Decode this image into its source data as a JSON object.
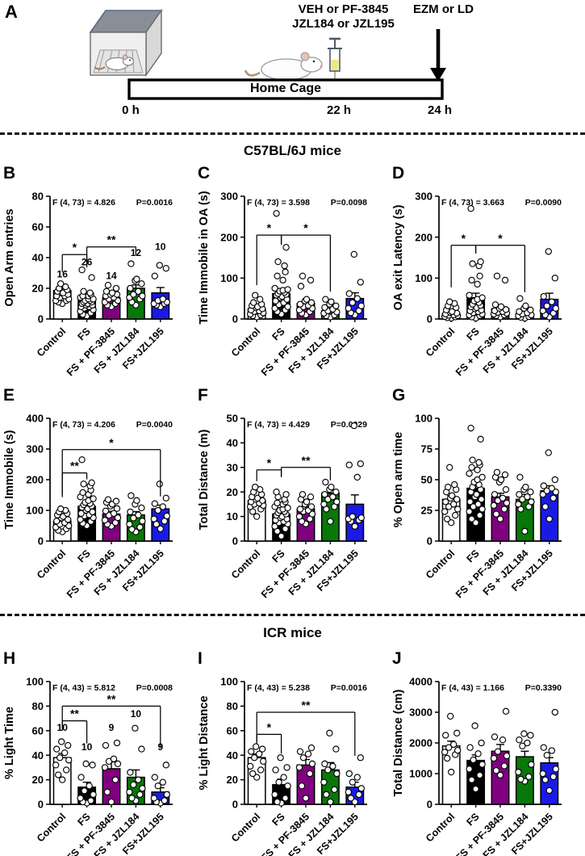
{
  "panel_a": {
    "letter": "A",
    "treatment_line1": "VEH or PF-3845",
    "treatment_line2": "JZL184 or JZL195",
    "test_label": "EZM or LD",
    "timeline_label": "Home Cage",
    "time_start": "0 h",
    "time_injection": "22 h",
    "time_test": "24 h"
  },
  "sections": {
    "c57": "C57BL/6J mice",
    "icr": "ICR mice"
  },
  "categories": [
    "Control",
    "FS",
    "FS + PF-3845",
    "FS + JZL184",
    "FS+JZL195"
  ],
  "bar_colors": [
    "#FFFFFF",
    "#000000",
    "#800080",
    "#087808",
    "#1A1AE6"
  ],
  "chart_data": [
    {
      "letter": "B",
      "type": "bar",
      "ylabel": "Open Arm entries",
      "ylim": 80,
      "yticks": [
        0,
        20,
        40,
        60,
        80
      ],
      "stats_f": "F (4, 73) = 4.826",
      "stats_p": "P=0.0016",
      "values": [
        18.5,
        12,
        14,
        20,
        17
      ],
      "sem": [
        1.3,
        1.2,
        1.2,
        2.2,
        3.5
      ],
      "n_labels": [
        "16",
        "26",
        "14",
        "12",
        "10"
      ],
      "n_y": [
        27,
        35,
        26,
        41,
        45
      ],
      "points": [
        [
          10,
          11,
          12,
          12,
          13,
          14,
          15,
          15,
          16,
          17,
          17,
          18,
          19,
          20,
          21,
          23
        ],
        [
          2,
          3,
          4,
          5,
          6,
          7,
          8,
          8,
          9,
          9,
          10,
          10,
          11,
          11,
          12,
          12,
          13,
          13,
          14,
          15,
          15,
          16,
          17,
          18,
          27,
          32
        ],
        [
          8,
          9,
          10,
          11,
          12,
          13,
          14,
          15,
          16,
          16,
          17,
          18,
          20,
          22
        ],
        [
          9,
          11,
          13,
          14,
          15,
          16,
          18,
          20,
          23,
          25,
          26,
          36
        ],
        [
          8,
          9,
          10,
          10,
          11,
          12,
          13,
          28,
          33,
          35
        ]
      ],
      "sig": [
        {
          "a": 0,
          "b": 1,
          "y": 42,
          "label": "*",
          "dropA": 22,
          "dropB": 16
        },
        {
          "a": 1,
          "b": 3,
          "y": 47,
          "label": "**",
          "dropA": 20,
          "dropB": 10
        }
      ]
    },
    {
      "letter": "C",
      "type": "bar",
      "ylabel": "Time Immobile in OA (s)",
      "ylim": 300,
      "yticks": [
        0,
        100,
        200,
        300
      ],
      "stats_f": "F (4, 73) = 3.598",
      "stats_p": "P=0.0098",
      "values": [
        25,
        62,
        38,
        20,
        50
      ],
      "sem": [
        4,
        9,
        8,
        4,
        14
      ],
      "n_labels": null,
      "n_y": null,
      "points": [
        [
          5,
          8,
          10,
          12,
          15,
          18,
          20,
          22,
          25,
          28,
          30,
          33,
          36,
          40,
          48,
          58
        ],
        [
          12,
          18,
          22,
          26,
          30,
          35,
          40,
          44,
          48,
          52,
          55,
          58,
          60,
          62,
          65,
          68,
          70,
          72,
          75,
          95,
          105,
          115,
          130,
          140,
          175,
          258
        ],
        [
          10,
          14,
          18,
          22,
          26,
          30,
          33,
          36,
          40,
          44,
          48,
          80,
          95,
          105
        ],
        [
          5,
          8,
          10,
          14,
          17,
          20,
          24,
          28,
          32,
          36,
          42,
          48
        ],
        [
          10,
          15,
          20,
          26,
          32,
          40,
          50,
          62,
          90,
          158
        ]
      ],
      "sig": [
        {
          "a": 0,
          "b": 1,
          "y": 205,
          "label": "*",
          "dropA": 62,
          "dropB": 12
        },
        {
          "a": 1,
          "b": 3,
          "y": 205,
          "label": "*",
          "dropA": 12,
          "dropB": 70
        }
      ]
    },
    {
      "letter": "D",
      "type": "bar",
      "ylabel": "OA exit Latency (s)",
      "ylim": 300,
      "yticks": [
        0,
        100,
        200,
        300
      ],
      "stats_f": "F (4, 73) = 3.663",
      "stats_p": "P=0.0090",
      "values": [
        13,
        52,
        25,
        13,
        48
      ],
      "sem": [
        3,
        11,
        7,
        4,
        15
      ],
      "n_labels": null,
      "n_y": null,
      "points": [
        [
          2,
          3,
          5,
          6,
          8,
          9,
          10,
          12,
          14,
          16,
          18,
          22,
          28,
          32,
          38,
          42
        ],
        [
          2,
          5,
          8,
          10,
          12,
          15,
          18,
          20,
          22,
          25,
          28,
          30,
          33,
          36,
          40,
          44,
          48,
          52,
          58,
          85,
          95,
          105,
          130,
          135,
          140,
          270
        ],
        [
          5,
          8,
          10,
          12,
          14,
          16,
          18,
          20,
          23,
          26,
          30,
          35,
          95,
          105
        ],
        [
          2,
          4,
          6,
          8,
          10,
          12,
          15,
          18,
          22,
          26,
          32,
          50
        ],
        [
          5,
          10,
          14,
          20,
          26,
          32,
          42,
          55,
          100,
          165
        ]
      ],
      "sig": [
        {
          "a": 0,
          "b": 1,
          "y": 180,
          "label": "*",
          "dropA": 52,
          "dropB": 10
        },
        {
          "a": 1,
          "b": 3,
          "y": 180,
          "label": "*",
          "dropA": 10,
          "dropB": 58
        }
      ]
    },
    {
      "letter": "E",
      "type": "bar",
      "ylabel": "Time Immobile (s)",
      "ylim": 400,
      "yticks": [
        0,
        100,
        200,
        300,
        400
      ],
      "stats_f": "F (4, 73) = 4.206",
      "stats_p": "P=0.0040",
      "values": [
        65,
        113,
        88,
        85,
        105
      ],
      "sem": [
        7,
        10,
        9,
        11,
        12
      ],
      "n_labels": null,
      "n_y": null,
      "points": [
        [
          30,
          35,
          40,
          45,
          50,
          55,
          60,
          65,
          70,
          75,
          80,
          85,
          90,
          95,
          100,
          105
        ],
        [
          50,
          58,
          64,
          70,
          76,
          82,
          86,
          90,
          95,
          100,
          105,
          110,
          114,
          118,
          122,
          126,
          132,
          138,
          144,
          152,
          158,
          166,
          180,
          186,
          190,
          265
        ],
        [
          48,
          55,
          60,
          68,
          76,
          84,
          90,
          98,
          106,
          114,
          120,
          126,
          130,
          135
        ],
        [
          30,
          38,
          45,
          55,
          65,
          75,
          85,
          95,
          108,
          120,
          132,
          148
        ],
        [
          40,
          55,
          65,
          72,
          82,
          100,
          112,
          122,
          140,
          186
        ]
      ],
      "sig": [
        {
          "a": 0,
          "b": 1,
          "y": 222,
          "label": "**",
          "dropA": 30,
          "dropB": 8
        },
        {
          "a": 0,
          "b": 4,
          "y": 298,
          "label": "*",
          "dropA": 56,
          "dropB": 58
        }
      ]
    },
    {
      "letter": "F",
      "type": "bar",
      "ylabel": "Total Distance (m)",
      "ylim": 50,
      "yticks": [
        0,
        10,
        20,
        30,
        40,
        50
      ],
      "stats_f": "F (4, 73) = 4.429",
      "stats_p": "P=0.0029",
      "values": [
        16.5,
        11,
        13,
        19.5,
        15
      ],
      "sem": [
        0.8,
        0.9,
        1.1,
        1.4,
        3.8
      ],
      "n_labels": null,
      "n_y": null,
      "points": [
        [
          10,
          12,
          13,
          14,
          14.5,
          15,
          15.5,
          16,
          16.5,
          17,
          17.5,
          18,
          19,
          20,
          21,
          22
        ],
        [
          2,
          4,
          5,
          6,
          7,
          7.5,
          8,
          8.5,
          9,
          9.5,
          10,
          10.5,
          11,
          11.5,
          12,
          12.5,
          13,
          13.5,
          14,
          15,
          15.5,
          16,
          17,
          18,
          19,
          20
        ],
        [
          7,
          8,
          9,
          10,
          11,
          12,
          12.5,
          13,
          14,
          15,
          16,
          17,
          18,
          19
        ],
        [
          8,
          13,
          14,
          15,
          16,
          17,
          18,
          19,
          20,
          21,
          22,
          24
        ],
        [
          6,
          8,
          8.5,
          9,
          9.5,
          10,
          26,
          31,
          31.5,
          47
        ]
      ],
      "sig": [
        {
          "a": 0,
          "b": 1,
          "y": 29,
          "label": "*",
          "dropA": 14,
          "dropB": 9
        },
        {
          "a": 1,
          "b": 3,
          "y": 30,
          "label": "**",
          "dropA": 11,
          "dropB": 16
        }
      ]
    },
    {
      "letter": "G",
      "type": "bar",
      "ylabel": "% Open arm time",
      "ylim": 100,
      "yticks": [
        0,
        25,
        50,
        75,
        100
      ],
      "stats_f": null,
      "stats_p": null,
      "values": [
        34,
        43,
        36,
        34,
        41
      ],
      "sem": [
        3,
        4,
        3,
        4,
        4
      ],
      "n_labels": null,
      "n_y": null,
      "points": [
        [
          15,
          18,
          21,
          24,
          26,
          28,
          30,
          32,
          34,
          35,
          37,
          40,
          42,
          44,
          46,
          60
        ],
        [
          15,
          18,
          21,
          24,
          26,
          28,
          30,
          32,
          34,
          36,
          38,
          40,
          42,
          44,
          46,
          48,
          50,
          52,
          55,
          58,
          60,
          62,
          64,
          66,
          83,
          92
        ],
        [
          18,
          22,
          26,
          29,
          31,
          33,
          35,
          38,
          42,
          48,
          50,
          52,
          54,
          56
        ],
        [
          8,
          26,
          28,
          30,
          32,
          34,
          36,
          38,
          40,
          42,
          44,
          52
        ],
        [
          18,
          28,
          35,
          38,
          40,
          41,
          43,
          45,
          50,
          72
        ]
      ],
      "sig": []
    },
    {
      "letter": "H",
      "type": "bar",
      "ylabel": "% Light Time",
      "ylim": 100,
      "yticks": [
        0,
        20,
        40,
        60,
        80,
        100
      ],
      "stats_f": "F (4, 43) = 5.812",
      "stats_p": "P=0.0008",
      "values": [
        38,
        14,
        29,
        22,
        10
      ],
      "sem": [
        3.5,
        4,
        5.5,
        6,
        3.5
      ],
      "n_labels": [
        "10",
        "10",
        "9",
        "10",
        "9"
      ],
      "n_y": [
        60,
        44,
        60,
        71,
        44
      ],
      "points": [
        [
          20,
          24,
          28,
          32,
          36,
          38,
          42,
          45,
          48,
          51
        ],
        [
          1,
          2,
          3,
          5,
          8,
          11,
          15,
          22,
          32,
          33
        ],
        [
          2,
          10,
          20,
          30,
          33,
          35,
          37,
          48,
          50
        ],
        [
          3,
          5,
          8,
          10,
          13,
          16,
          20,
          26,
          45,
          62
        ],
        [
          1,
          2,
          3,
          5,
          8,
          15,
          18,
          22,
          32
        ]
      ],
      "sig": [
        {
          "a": 0,
          "b": 1,
          "y": 68,
          "label": "**",
          "dropA": 12,
          "dropB": 28
        },
        {
          "a": 0,
          "b": 4,
          "y": 80,
          "label": "**",
          "dropA": 28,
          "dropB": 52
        }
      ]
    },
    {
      "letter": "I",
      "type": "bar",
      "ylabel": "% Light Distance",
      "ylim": 100,
      "yticks": [
        0,
        20,
        40,
        60,
        80,
        100
      ],
      "stats_f": "F (4, 43) = 5.238",
      "stats_p": "P=0.0016",
      "values": [
        38,
        16,
        32,
        28,
        14
      ],
      "sem": [
        3,
        4.5,
        4.5,
        6,
        4
      ],
      "n_labels": null,
      "n_y": null,
      "points": [
        [
          22,
          25,
          28,
          31,
          35,
          38,
          41,
          43,
          45,
          47
        ],
        [
          1,
          2,
          5,
          8,
          15,
          18,
          22,
          28,
          30,
          38
        ],
        [
          5,
          15,
          25,
          30,
          33,
          38,
          41,
          43,
          46
        ],
        [
          2,
          8,
          12,
          18,
          25,
          28,
          31,
          33,
          45,
          58
        ],
        [
          2,
          5,
          8,
          10,
          13,
          18,
          22,
          25,
          38
        ]
      ],
      "sig": [
        {
          "a": 0,
          "b": 1,
          "y": 57,
          "label": "*",
          "dropA": 12,
          "dropB": 24
        },
        {
          "a": 0,
          "b": 4,
          "y": 75,
          "label": "**",
          "dropA": 36,
          "dropB": 54
        }
      ]
    },
    {
      "letter": "J",
      "type": "bar",
      "ylabel": "Total Distance (cm)",
      "ylim": 4000,
      "yticks": [
        0,
        1000,
        2000,
        3000,
        4000
      ],
      "stats_f": "F (4, 43) = 1.166",
      "stats_p": "P=0.3390",
      "values": [
        1900,
        1430,
        1730,
        1550,
        1350
      ],
      "sem": [
        160,
        180,
        220,
        180,
        170
      ],
      "n_labels": null,
      "n_y": null,
      "points": [
        [
          1050,
          1500,
          1620,
          1700,
          1760,
          1850,
          1950,
          2250,
          2320,
          2870
        ],
        [
          500,
          800,
          950,
          1150,
          1300,
          1450,
          1650,
          1850,
          2000,
          2560
        ],
        [
          950,
          1100,
          1250,
          1500,
          1580,
          1720,
          2100,
          2200,
          3030
        ],
        [
          750,
          820,
          900,
          1050,
          1300,
          1900,
          2000,
          2100,
          2250,
          2300
        ],
        [
          450,
          800,
          900,
          1000,
          1150,
          1600,
          1750,
          1850,
          3000
        ]
      ],
      "sig": []
    }
  ]
}
